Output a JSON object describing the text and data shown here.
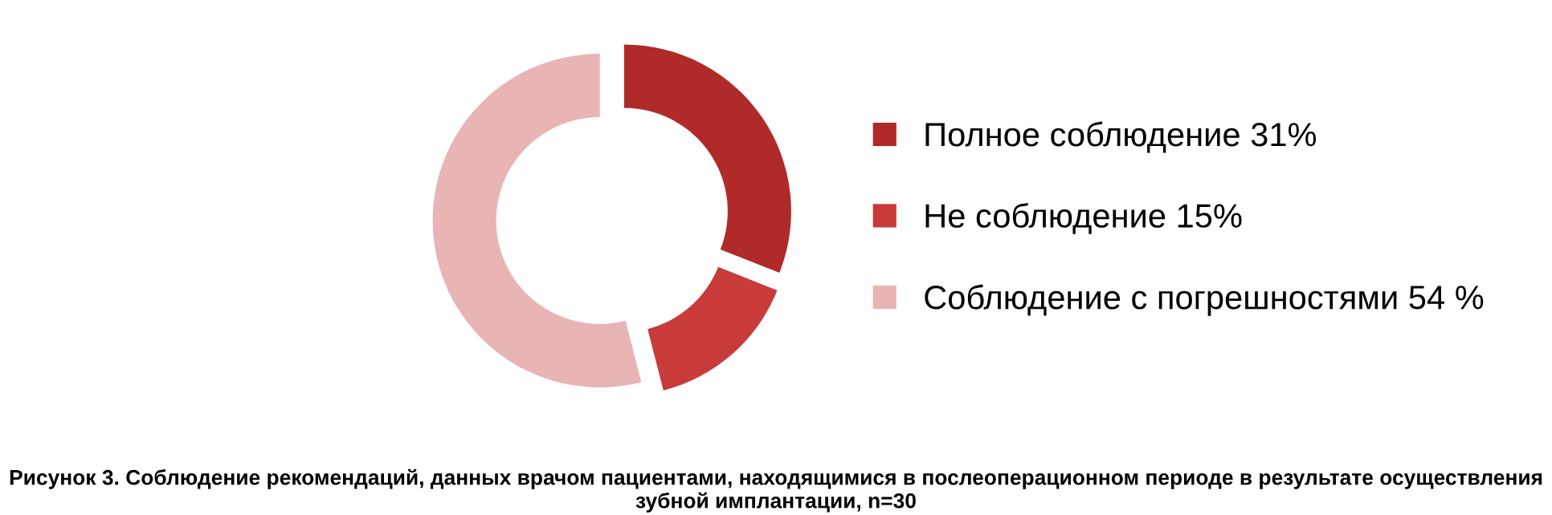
{
  "chart_data": {
    "type": "donut",
    "categories": [
      "Полное соблюдение 31%",
      "Не соблюдение 15%",
      "Соблюдение с погрешностями 54 %"
    ],
    "values": [
      31,
      15,
      54
    ],
    "colors": [
      "#b02a2a",
      "#c93a3a",
      "#e8b4b4"
    ],
    "legend": "right",
    "annotations": [
      "Рисунок 3. Соблюдение рекомендаций, данных врачом пациентами, находящимися в послеоперационном периоде в результате осуществления зубной имплантации, n=30"
    ]
  }
}
